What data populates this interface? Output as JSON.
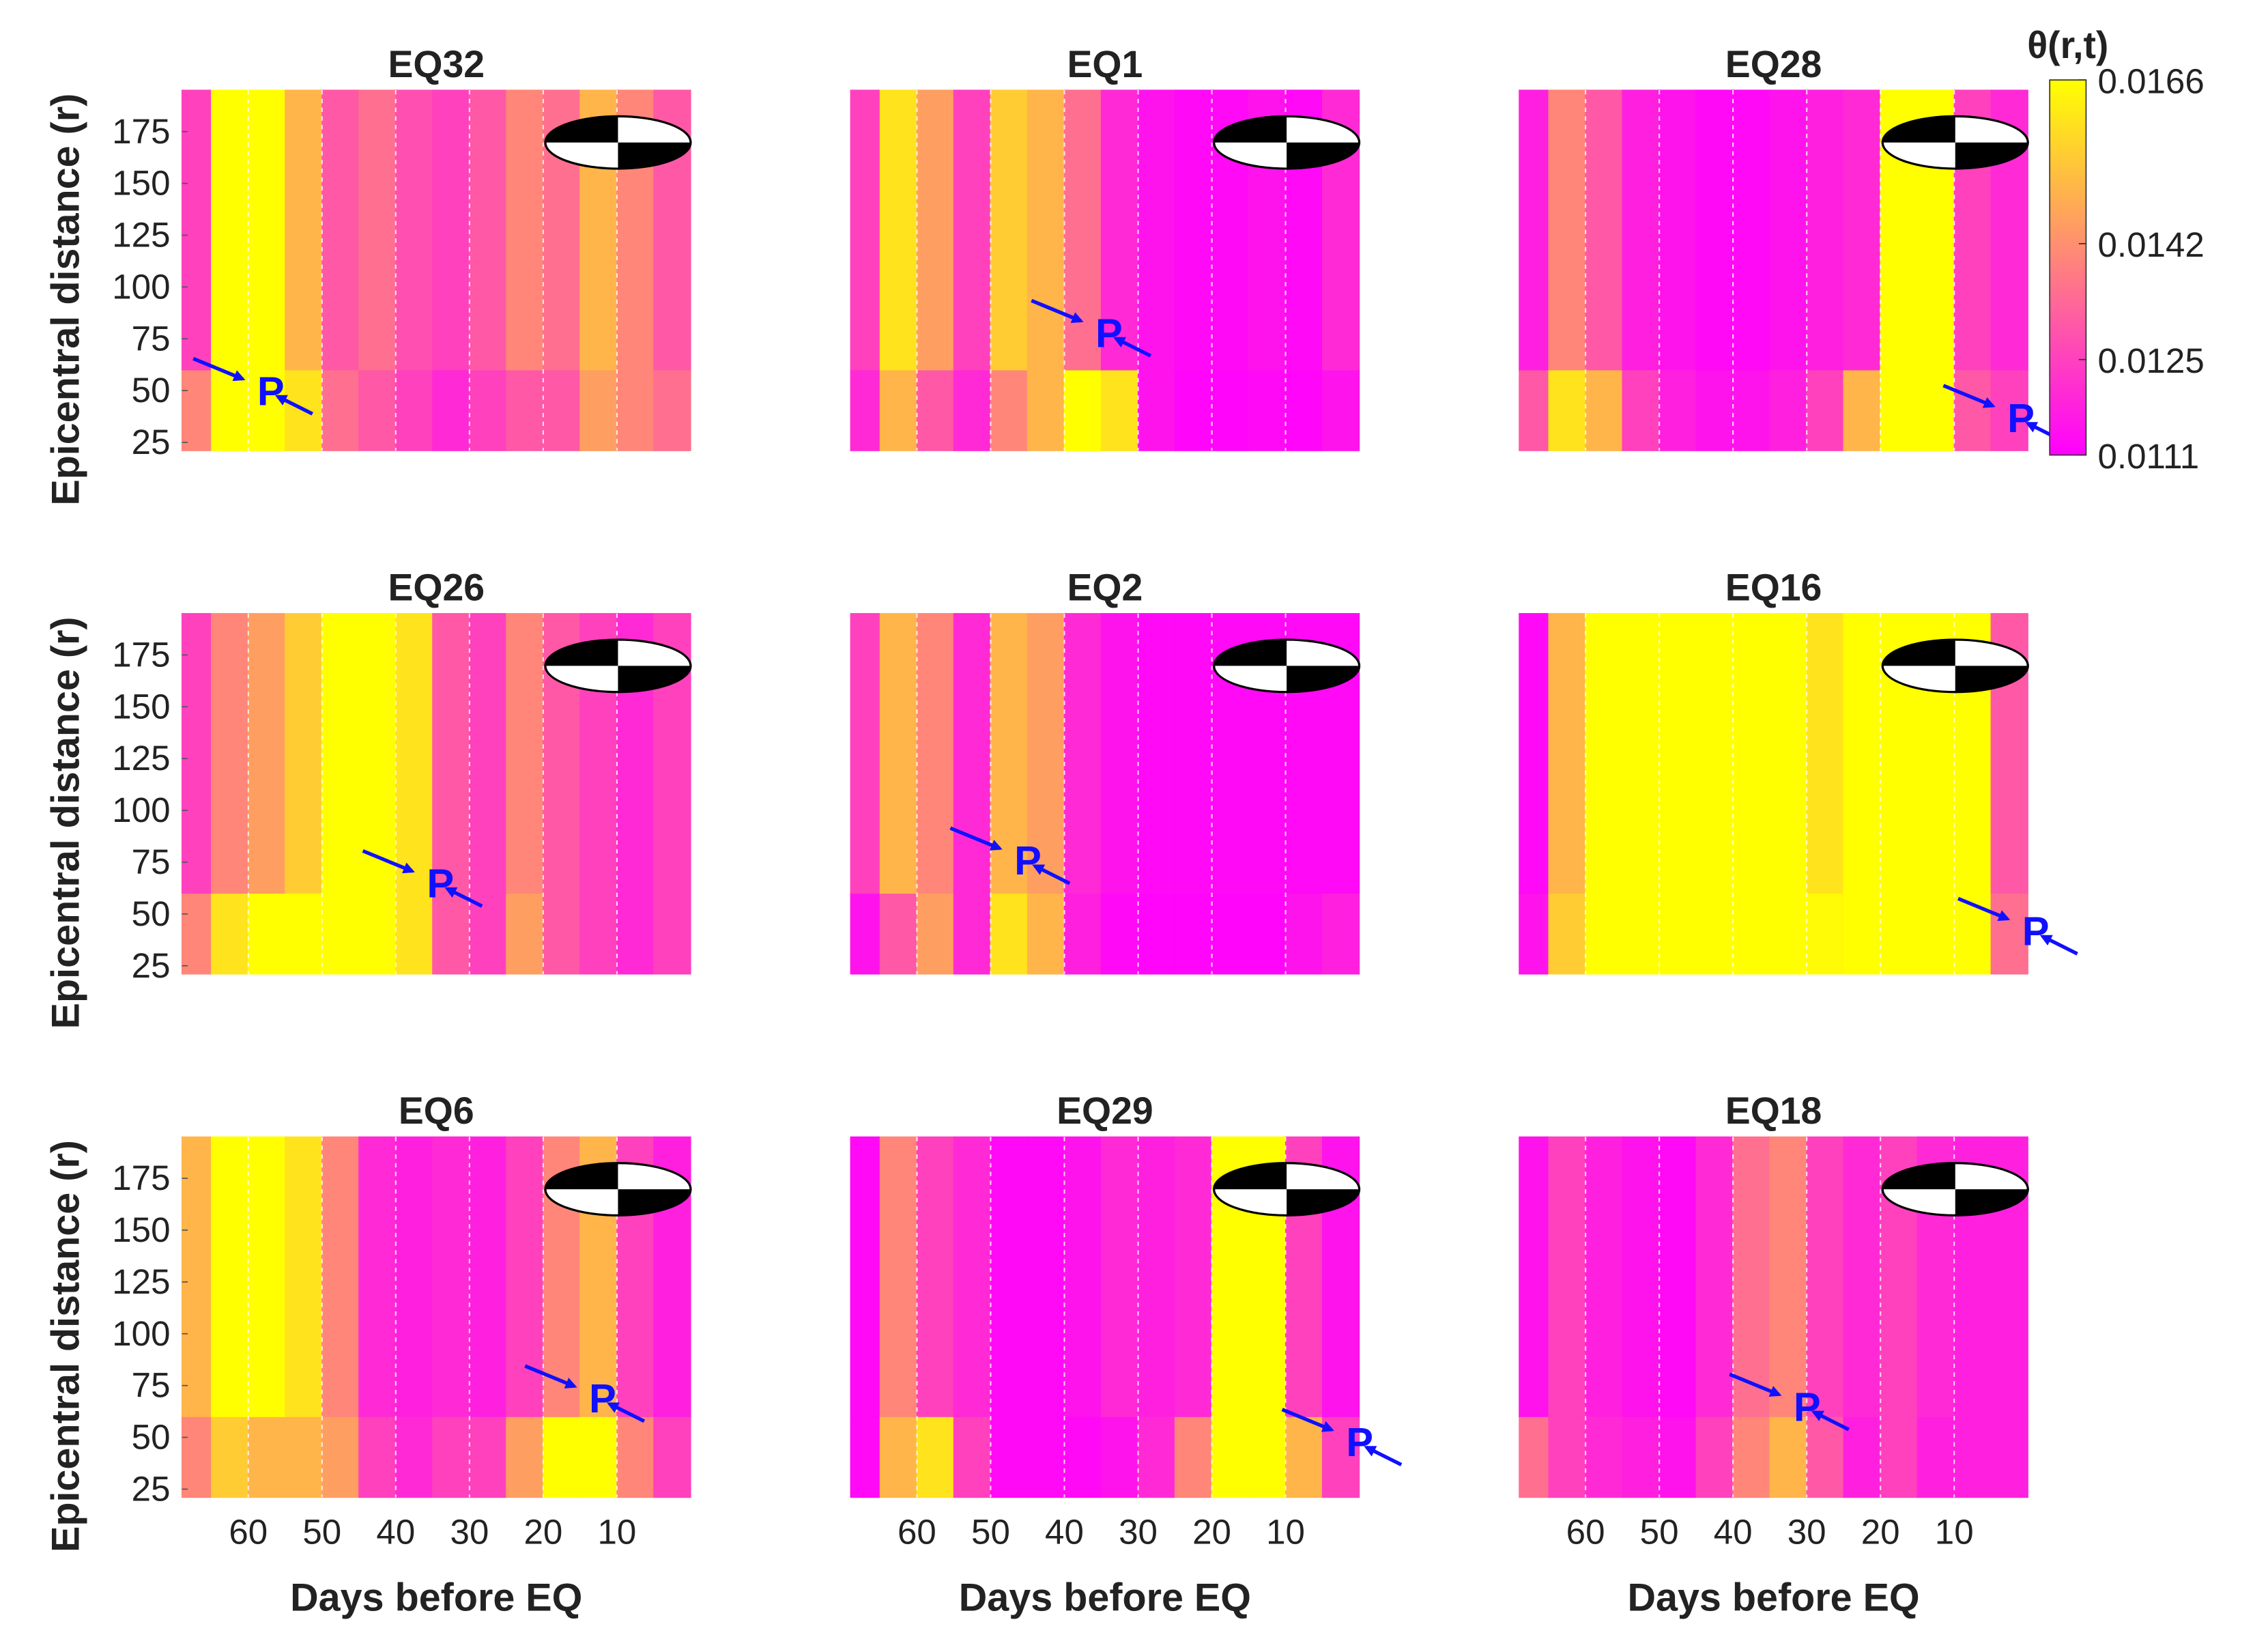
{
  "chart_data": [
    {
      "type": "heatmap",
      "title": "EQ32",
      "ylabel": "Epicentral distance (r)",
      "x": [
        69,
        65,
        60,
        55,
        50,
        45,
        40,
        35,
        30,
        25,
        20,
        15,
        10,
        5,
        0
      ],
      "y": [
        21,
        60,
        195
      ],
      "values": [
        [
          0.014,
          0.0166,
          0.0166,
          0.016,
          0.0135,
          0.013,
          0.0125,
          0.012,
          0.0125,
          0.013,
          0.013,
          0.0145,
          0.014,
          0.0135
        ],
        [
          0.0125,
          0.0166,
          0.0166,
          0.015,
          0.013,
          0.0135,
          0.0128,
          0.0125,
          0.013,
          0.014,
          0.0135,
          0.015,
          0.014,
          0.013
        ]
      ],
      "xlim": [
        69,
        0
      ],
      "ylim": [
        21,
        195
      ],
      "xticks": [
        60,
        50,
        40,
        30,
        20,
        10
      ],
      "yticks": [
        25,
        50,
        75,
        100,
        125,
        150,
        175
      ],
      "grid": true,
      "annotation": {
        "text": "P",
        "x": 58,
        "y": 50
      }
    },
    {
      "type": "heatmap",
      "title": "EQ1",
      "x": [
        69,
        65,
        60,
        55,
        50,
        45,
        40,
        35,
        30,
        25,
        20,
        15,
        10,
        5,
        0
      ],
      "y": [
        21,
        60,
        195
      ],
      "values": [
        [
          0.012,
          0.015,
          0.013,
          0.012,
          0.014,
          0.015,
          0.0166,
          0.016,
          0.0115,
          0.0112,
          0.0112,
          0.0113,
          0.0112,
          0.0115
        ],
        [
          0.0125,
          0.016,
          0.0145,
          0.0125,
          0.0155,
          0.015,
          0.0135,
          0.012,
          0.0115,
          0.0113,
          0.0113,
          0.0115,
          0.0113,
          0.012
        ]
      ],
      "xlim": [
        69,
        0
      ],
      "ylim": [
        21,
        195
      ],
      "xticks": [
        60,
        50,
        40,
        30,
        20,
        10
      ],
      "grid": true,
      "annotation": {
        "text": "P",
        "x": 35,
        "y": 78
      }
    },
    {
      "type": "heatmap",
      "title": "EQ28",
      "x": [
        69,
        65,
        60,
        55,
        50,
        45,
        40,
        35,
        30,
        25,
        20,
        15,
        10,
        5,
        0
      ],
      "y": [
        21,
        60,
        195
      ],
      "values": [
        [
          0.013,
          0.016,
          0.015,
          0.0125,
          0.0118,
          0.0115,
          0.0115,
          0.0118,
          0.0125,
          0.015,
          0.0166,
          0.0166,
          0.013,
          0.0125
        ],
        [
          0.0118,
          0.014,
          0.013,
          0.0118,
          0.0115,
          0.0113,
          0.0113,
          0.0115,
          0.0118,
          0.012,
          0.0166,
          0.0166,
          0.0125,
          0.012
        ]
      ],
      "xlim": [
        69,
        0
      ],
      "ylim": [
        21,
        195
      ],
      "xticks": [
        60,
        50,
        40,
        30,
        20,
        10
      ],
      "grid": true,
      "annotation": {
        "text": "P",
        "x": 2,
        "y": 37
      }
    },
    {
      "type": "heatmap",
      "title": "EQ26",
      "ylabel": "Epicentral distance (r)",
      "x": [
        69,
        65,
        60,
        55,
        50,
        45,
        40,
        35,
        30,
        25,
        20,
        15,
        10,
        5,
        0
      ],
      "y": [
        21,
        60,
        195
      ],
      "values": [
        [
          0.014,
          0.016,
          0.0166,
          0.0166,
          0.0166,
          0.0166,
          0.016,
          0.013,
          0.0125,
          0.0145,
          0.013,
          0.0125,
          0.012,
          0.0125
        ],
        [
          0.0125,
          0.014,
          0.0145,
          0.0155,
          0.0166,
          0.0166,
          0.016,
          0.013,
          0.0125,
          0.014,
          0.013,
          0.0125,
          0.012,
          0.0125
        ]
      ],
      "xlim": [
        69,
        0
      ],
      "ylim": [
        21,
        195
      ],
      "xticks": [
        60,
        50,
        40,
        30,
        20,
        10
      ],
      "yticks": [
        25,
        50,
        75,
        100,
        125,
        150,
        175
      ],
      "grid": true,
      "annotation": {
        "text": "P",
        "x": 35,
        "y": 65
      }
    },
    {
      "type": "heatmap",
      "title": "EQ2",
      "x": [
        69,
        65,
        60,
        55,
        50,
        45,
        40,
        35,
        30,
        25,
        20,
        15,
        10,
        5,
        0
      ],
      "y": [
        21,
        60,
        195
      ],
      "values": [
        [
          0.0115,
          0.013,
          0.0145,
          0.012,
          0.016,
          0.015,
          0.0118,
          0.0113,
          0.0112,
          0.0112,
          0.0112,
          0.0112,
          0.0115,
          0.0118
        ],
        [
          0.0125,
          0.015,
          0.014,
          0.012,
          0.015,
          0.0145,
          0.012,
          0.0115,
          0.0113,
          0.0113,
          0.0113,
          0.0113,
          0.0113,
          0.0113
        ]
      ],
      "xlim": [
        69,
        0
      ],
      "ylim": [
        21,
        195
      ],
      "xticks": [
        60,
        50,
        40,
        30,
        20,
        10
      ],
      "grid": true,
      "annotation": {
        "text": "P",
        "x": 46,
        "y": 76
      }
    },
    {
      "type": "heatmap",
      "title": "EQ16",
      "x": [
        69,
        65,
        60,
        55,
        50,
        45,
        40,
        35,
        30,
        25,
        20,
        15,
        10,
        5,
        0
      ],
      "y": [
        21,
        60,
        195
      ],
      "values": [
        [
          0.0115,
          0.0155,
          0.0166,
          0.0166,
          0.0166,
          0.0166,
          0.0166,
          0.0166,
          0.0165,
          0.0166,
          0.0166,
          0.0166,
          0.0166,
          0.0135
        ],
        [
          0.0113,
          0.015,
          0.0166,
          0.0166,
          0.0166,
          0.0166,
          0.0166,
          0.0166,
          0.016,
          0.0166,
          0.0166,
          0.0166,
          0.0166,
          0.013
        ]
      ],
      "xlim": [
        69,
        0
      ],
      "ylim": [
        21,
        195
      ],
      "xticks": [
        60,
        50,
        40,
        30,
        20,
        10
      ],
      "grid": true,
      "annotation": {
        "text": "P",
        "x": 0,
        "y": 42
      }
    },
    {
      "type": "heatmap",
      "title": "EQ6",
      "ylabel": "Epicentral distance (r)",
      "xlabel": "Days before EQ",
      "x": [
        69,
        65,
        60,
        55,
        50,
        45,
        40,
        35,
        30,
        25,
        20,
        15,
        10,
        5,
        0
      ],
      "y": [
        21,
        60,
        195
      ],
      "values": [
        [
          0.014,
          0.0155,
          0.015,
          0.015,
          0.0145,
          0.0125,
          0.012,
          0.0125,
          0.0125,
          0.0145,
          0.0166,
          0.0166,
          0.014,
          0.0125
        ],
        [
          0.015,
          0.0166,
          0.0166,
          0.016,
          0.014,
          0.012,
          0.0118,
          0.012,
          0.0118,
          0.0125,
          0.014,
          0.015,
          0.0125,
          0.0118
        ]
      ],
      "xlim": [
        69,
        0
      ],
      "ylim": [
        21,
        195
      ],
      "xticks": [
        60,
        50,
        40,
        30,
        20,
        10
      ],
      "yticks": [
        25,
        50,
        75,
        100,
        125,
        150,
        175
      ],
      "grid": true,
      "annotation": {
        "text": "P",
        "x": 13,
        "y": 69
      }
    },
    {
      "type": "heatmap",
      "title": "EQ29",
      "xlabel": "Days before EQ",
      "x": [
        69,
        65,
        60,
        55,
        50,
        45,
        40,
        35,
        30,
        25,
        20,
        15,
        10,
        5,
        0
      ],
      "y": [
        21,
        60,
        195
      ],
      "values": [
        [
          0.0113,
          0.015,
          0.016,
          0.0125,
          0.0113,
          0.0113,
          0.0113,
          0.0115,
          0.012,
          0.014,
          0.0166,
          0.0166,
          0.015,
          0.0125
        ],
        [
          0.0113,
          0.014,
          0.0125,
          0.012,
          0.0113,
          0.0113,
          0.0115,
          0.012,
          0.0118,
          0.012,
          0.0166,
          0.0166,
          0.0125,
          0.0115
        ]
      ],
      "xlim": [
        69,
        0
      ],
      "ylim": [
        21,
        195
      ],
      "xticks": [
        60,
        50,
        40,
        30,
        20,
        10
      ],
      "grid": true,
      "annotation": {
        "text": "P",
        "x": 1,
        "y": 48
      }
    },
    {
      "type": "heatmap",
      "title": "EQ18",
      "xlabel": "Days before EQ",
      "x": [
        69,
        65,
        60,
        55,
        50,
        45,
        40,
        35,
        30,
        25,
        20,
        15,
        10,
        5,
        0
      ],
      "y": [
        21,
        60,
        195
      ],
      "values": [
        [
          0.0135,
          0.0125,
          0.012,
          0.0118,
          0.0115,
          0.0125,
          0.014,
          0.015,
          0.013,
          0.0118,
          0.0125,
          0.0118,
          0.0118,
          0.0118
        ],
        [
          0.0115,
          0.0125,
          0.0118,
          0.0115,
          0.0113,
          0.012,
          0.0135,
          0.014,
          0.0125,
          0.012,
          0.0125,
          0.012,
          0.0118,
          0.0118
        ]
      ],
      "xlim": [
        69,
        0
      ],
      "ylim": [
        21,
        195
      ],
      "xticks": [
        60,
        50,
        40,
        30,
        20,
        10
      ],
      "grid": true,
      "annotation": {
        "text": "P",
        "x": 31,
        "y": 65
      }
    },
    {
      "type": "colorbar",
      "label": "θ(r,t)",
      "clim": [
        0.0111,
        0.0166
      ],
      "ticks": [
        0.0111,
        0.0125,
        0.0142,
        0.0166
      ],
      "colors": [
        "#ff00ff",
        "#ffff00"
      ]
    }
  ]
}
